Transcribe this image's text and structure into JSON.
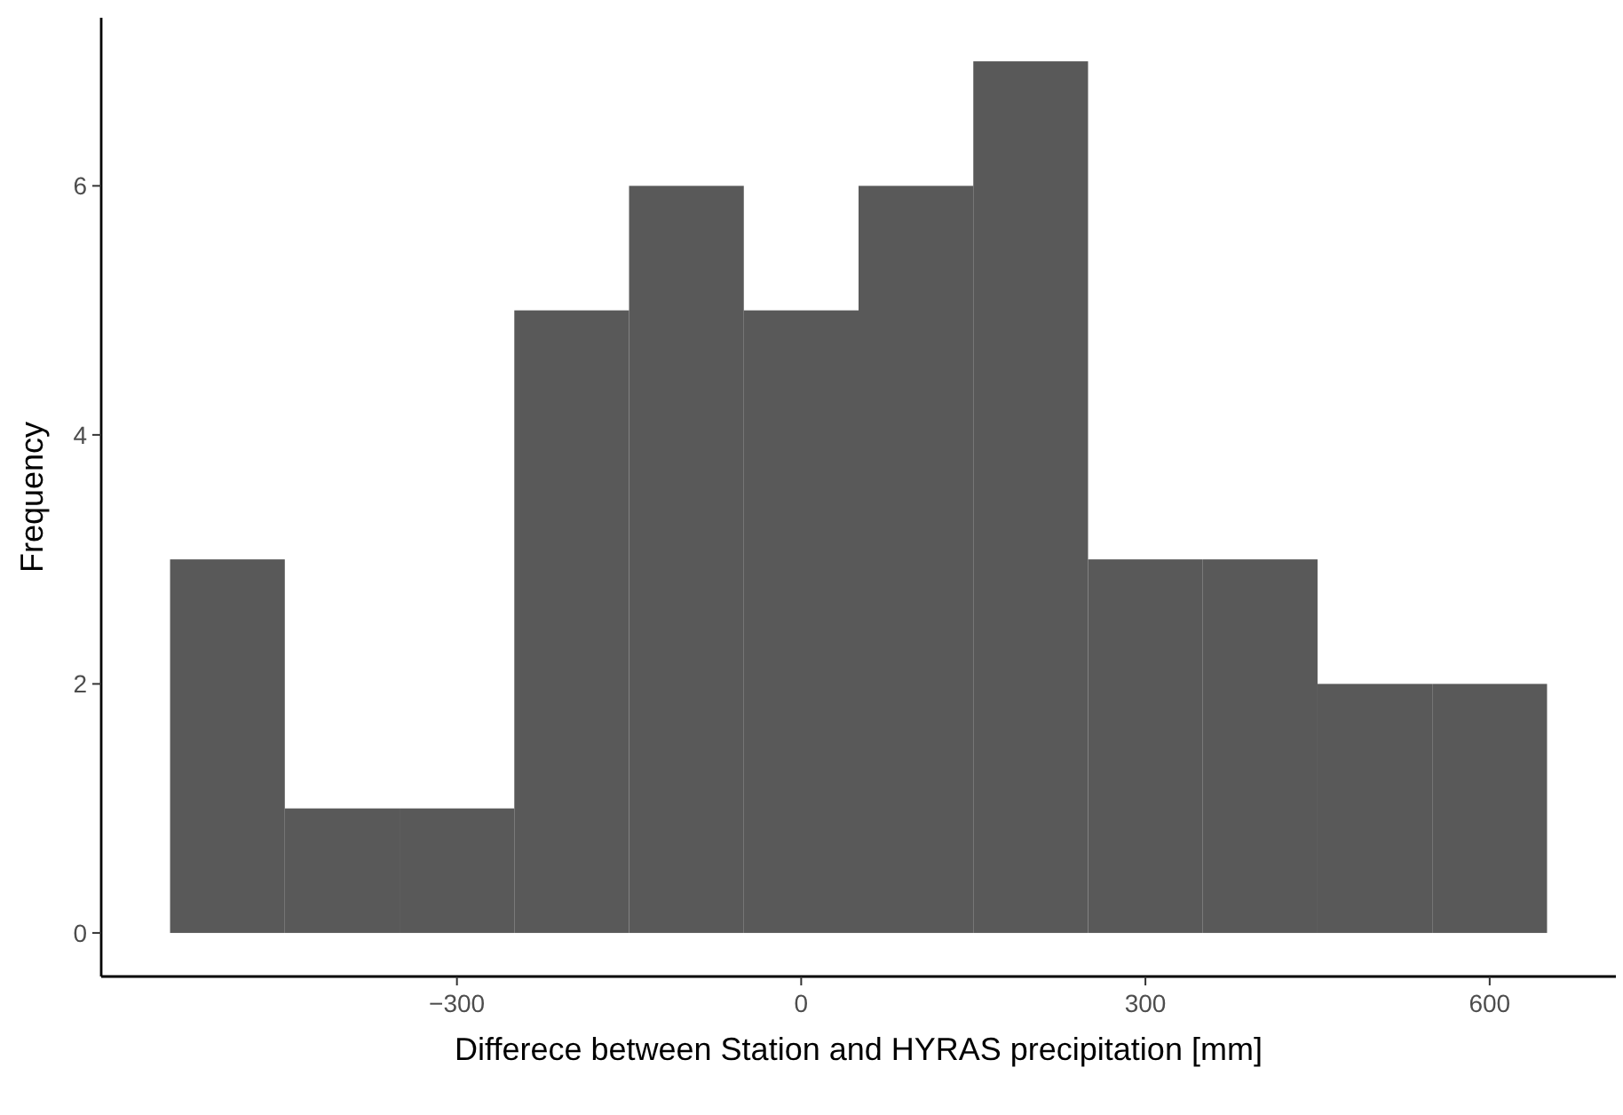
{
  "chart_data": {
    "type": "histogram",
    "xlabel": "Differece between Station and HYRAS precipitation [mm]",
    "ylabel": "Frequency",
    "bins": [
      -550,
      -450,
      -350,
      -250,
      -150,
      -50,
      50,
      150,
      250,
      350,
      450,
      550,
      650
    ],
    "values": [
      3,
      1,
      1,
      5,
      6,
      5,
      6,
      7,
      3,
      3,
      2,
      2
    ],
    "color": "#595959",
    "xlim": [
      -610,
      710
    ],
    "xticks": [
      -300,
      0,
      300,
      600
    ],
    "ylim": [
      -0.35,
      7.35
    ],
    "yticks": [
      0,
      2,
      4,
      6
    ],
    "grid": false
  }
}
